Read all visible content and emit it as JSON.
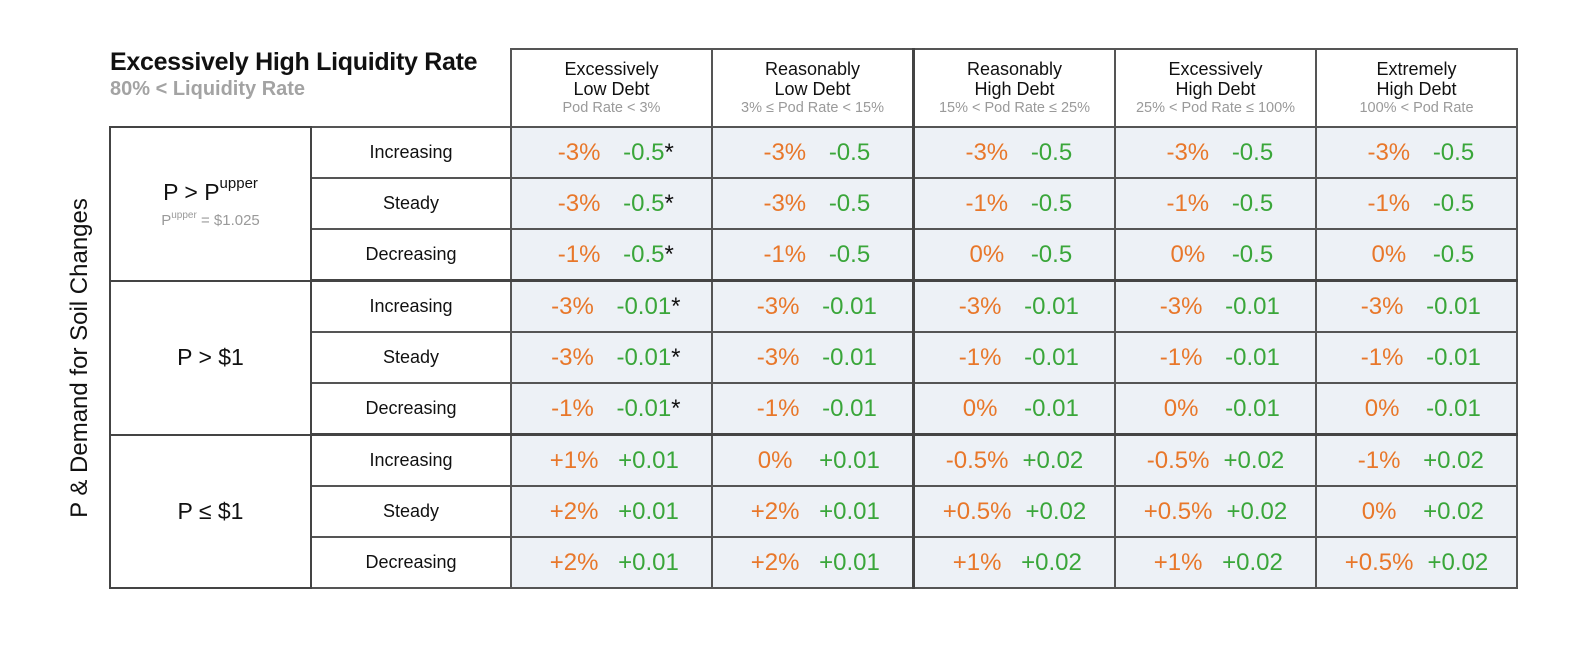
{
  "title": "Excessively High Liquidity Rate",
  "subtitle": "80% < Liquidity Rate",
  "y_axis_label": "P & Demand for Soil Changes",
  "columns": [
    {
      "line1": "Excessively",
      "line2": "Low Debt",
      "range": "Pod Rate < 3%"
    },
    {
      "line1": "Reasonably",
      "line2": "Low Debt",
      "range": "3% ≤ Pod Rate < 15%"
    },
    {
      "line1": "Reasonably",
      "line2": "High Debt",
      "range": "15% < Pod Rate ≤ 25%"
    },
    {
      "line1": "Excessively",
      "line2": "High Debt",
      "range": "25% < Pod Rate ≤ 100%"
    },
    {
      "line1": "Extremely",
      "line2": "High Debt",
      "range": "100% < Pod Rate"
    }
  ],
  "groups": [
    {
      "label": "P > P",
      "label_sup": "upper",
      "note": "P",
      "note_sup": "upper",
      "note_rest": " = $1.025"
    },
    {
      "label": "P > $1"
    },
    {
      "label": "P ≤ $1"
    }
  ],
  "trends": [
    "Increasing",
    "Steady",
    "Decreasing"
  ],
  "rows": [
    {
      "cells": [
        [
          "-3%",
          "-0.5",
          "*"
        ],
        [
          "-3%",
          "-0.5",
          ""
        ],
        [
          "-3%",
          "-0.5",
          ""
        ],
        [
          "-3%",
          "-0.5",
          ""
        ],
        [
          "-3%",
          "-0.5",
          ""
        ]
      ]
    },
    {
      "cells": [
        [
          "-3%",
          "-0.5",
          "*"
        ],
        [
          "-3%",
          "-0.5",
          ""
        ],
        [
          "-1%",
          "-0.5",
          ""
        ],
        [
          "-1%",
          "-0.5",
          ""
        ],
        [
          "-1%",
          "-0.5",
          ""
        ]
      ]
    },
    {
      "cells": [
        [
          "-1%",
          "-0.5",
          "*"
        ],
        [
          "-1%",
          "-0.5",
          ""
        ],
        [
          "0%",
          "-0.5",
          ""
        ],
        [
          "0%",
          "-0.5",
          ""
        ],
        [
          "0%",
          "-0.5",
          ""
        ]
      ]
    },
    {
      "cells": [
        [
          "-3%",
          "-0.01",
          "*"
        ],
        [
          "-3%",
          "-0.01",
          ""
        ],
        [
          "-3%",
          "-0.01",
          ""
        ],
        [
          "-3%",
          "-0.01",
          ""
        ],
        [
          "-3%",
          "-0.01",
          ""
        ]
      ]
    },
    {
      "cells": [
        [
          "-3%",
          "-0.01",
          "*"
        ],
        [
          "-3%",
          "-0.01",
          ""
        ],
        [
          "-1%",
          "-0.01",
          ""
        ],
        [
          "-1%",
          "-0.01",
          ""
        ],
        [
          "-1%",
          "-0.01",
          ""
        ]
      ]
    },
    {
      "cells": [
        [
          "-1%",
          "-0.01",
          "*"
        ],
        [
          "-1%",
          "-0.01",
          ""
        ],
        [
          "0%",
          "-0.01",
          ""
        ],
        [
          "0%",
          "-0.01",
          ""
        ],
        [
          "0%",
          "-0.01",
          ""
        ]
      ]
    },
    {
      "cells": [
        [
          "+1%",
          "+0.01",
          ""
        ],
        [
          "0%",
          "+0.01",
          ""
        ],
        [
          "-0.5%",
          "+0.02",
          ""
        ],
        [
          "-0.5%",
          "+0.02",
          ""
        ],
        [
          "-1%",
          "+0.02",
          ""
        ]
      ]
    },
    {
      "cells": [
        [
          "+2%",
          "+0.01",
          ""
        ],
        [
          "+2%",
          "+0.01",
          ""
        ],
        [
          "+0.5%",
          "+0.02",
          ""
        ],
        [
          "+0.5%",
          "+0.02",
          ""
        ],
        [
          "0%",
          "+0.02",
          ""
        ]
      ]
    },
    {
      "cells": [
        [
          "+2%",
          "+0.01",
          ""
        ],
        [
          "+2%",
          "+0.01",
          ""
        ],
        [
          "+1%",
          "+0.02",
          ""
        ],
        [
          "+1%",
          "+0.02",
          ""
        ],
        [
          "+0.5%",
          "+0.02",
          ""
        ]
      ]
    }
  ],
  "colors": {
    "pct": "#e8772a",
    "value": "#3aa63a",
    "cell_bg": "#edf1f6"
  }
}
